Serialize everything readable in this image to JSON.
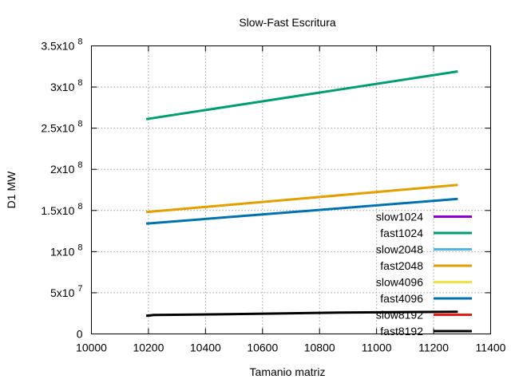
{
  "chart_data": {
    "type": "line",
    "title": "Slow-Fast Escritura",
    "xlabel": "Tamanio matriz",
    "ylabel": "D1 MW",
    "xlim": [
      10000,
      11400
    ],
    "ylim": [
      0,
      350000000
    ],
    "grid": true,
    "legend_position": "bottom-right",
    "x_ticks": [
      {
        "value": 10000,
        "label": "10000"
      },
      {
        "value": 10200,
        "label": "10200"
      },
      {
        "value": 10400,
        "label": "10400"
      },
      {
        "value": 10600,
        "label": "10600"
      },
      {
        "value": 10800,
        "label": "10800"
      },
      {
        "value": 11000,
        "label": "11000"
      },
      {
        "value": 11200,
        "label": "11200"
      },
      {
        "value": 11400,
        "label": "11400"
      }
    ],
    "y_ticks": [
      {
        "value": 0,
        "mant": "0",
        "exp": ""
      },
      {
        "value": 50000000,
        "mant": "5x10",
        "exp": "7"
      },
      {
        "value": 100000000,
        "mant": "1x10",
        "exp": "8"
      },
      {
        "value": 150000000,
        "mant": "1.5x10",
        "exp": "8"
      },
      {
        "value": 200000000,
        "mant": "2x10",
        "exp": "8"
      },
      {
        "value": 250000000,
        "mant": "2.5x10",
        "exp": "8"
      },
      {
        "value": 300000000,
        "mant": "3x10",
        "exp": "8"
      },
      {
        "value": 350000000,
        "mant": "3.5x10",
        "exp": "8"
      }
    ],
    "series": [
      {
        "name": "slow1024",
        "color": "#9400d3",
        "x": [
          10192,
          11285
        ],
        "y": [
          null,
          null
        ]
      },
      {
        "name": "fast1024",
        "color": "#009e73",
        "x": [
          10192,
          11285
        ],
        "y": [
          261000000,
          319000000
        ]
      },
      {
        "name": "slow2048",
        "color": "#56b4e9",
        "x": [
          10192,
          11285
        ],
        "y": [
          null,
          null
        ]
      },
      {
        "name": "fast2048",
        "color": "#e69f00",
        "x": [
          10192,
          11285
        ],
        "y": [
          148000000,
          181000000
        ]
      },
      {
        "name": "slow4096",
        "color": "#f0e442",
        "x": [
          10192,
          11285
        ],
        "y": [
          null,
          null
        ]
      },
      {
        "name": "fast4096",
        "color": "#0072b2",
        "x": [
          10192,
          11285
        ],
        "y": [
          134000000,
          164000000
        ]
      },
      {
        "name": "slow8192",
        "color": "#e51e10",
        "x": [
          10192,
          11285
        ],
        "y": [
          null,
          null
        ]
      },
      {
        "name": "fast8192",
        "color": "#000000",
        "x": [
          10192,
          10220,
          10480,
          10680,
          10870,
          11285
        ],
        "y": [
          22000000,
          23000000,
          24000000,
          25000000,
          26000000,
          27000000
        ]
      }
    ]
  }
}
